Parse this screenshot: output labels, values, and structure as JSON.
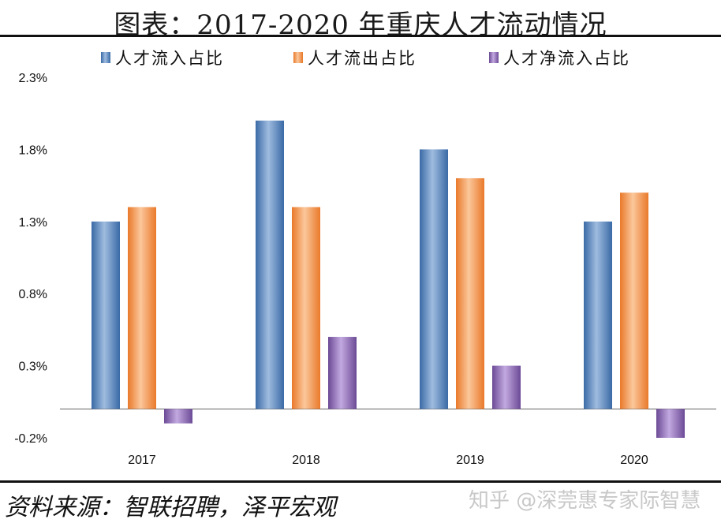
{
  "header": {
    "title": "图表：2017-2020 年重庆人才流动情况"
  },
  "footer": {
    "source": "资料来源：智联招聘，泽平宏观",
    "watermark": "知乎 @深莞惠专家际智慧"
  },
  "colors": {
    "inflow": "#4f81bd",
    "outflow": "#f79646",
    "net": "#8064a2"
  },
  "chart_data": {
    "type": "bar",
    "categories": [
      "2017",
      "2018",
      "2019",
      "2020"
    ],
    "series": [
      {
        "name": "人才流入占比",
        "values": [
          1.3,
          2.0,
          1.8,
          1.3
        ]
      },
      {
        "name": "人才流出占比",
        "values": [
          1.4,
          1.4,
          1.6,
          1.5
        ]
      },
      {
        "name": "人才净流入占比",
        "values": [
          -0.1,
          0.5,
          0.3,
          -0.2
        ]
      }
    ],
    "yticks": [
      "2.3%",
      "1.8%",
      "1.3%",
      "0.8%",
      "0.3%",
      "-0.2%"
    ],
    "ytick_values": [
      2.3,
      1.8,
      1.3,
      0.8,
      0.3,
      -0.2
    ],
    "ylim": [
      -0.2,
      2.3
    ],
    "unit": "%",
    "legend_position": "top",
    "grid": false
  }
}
